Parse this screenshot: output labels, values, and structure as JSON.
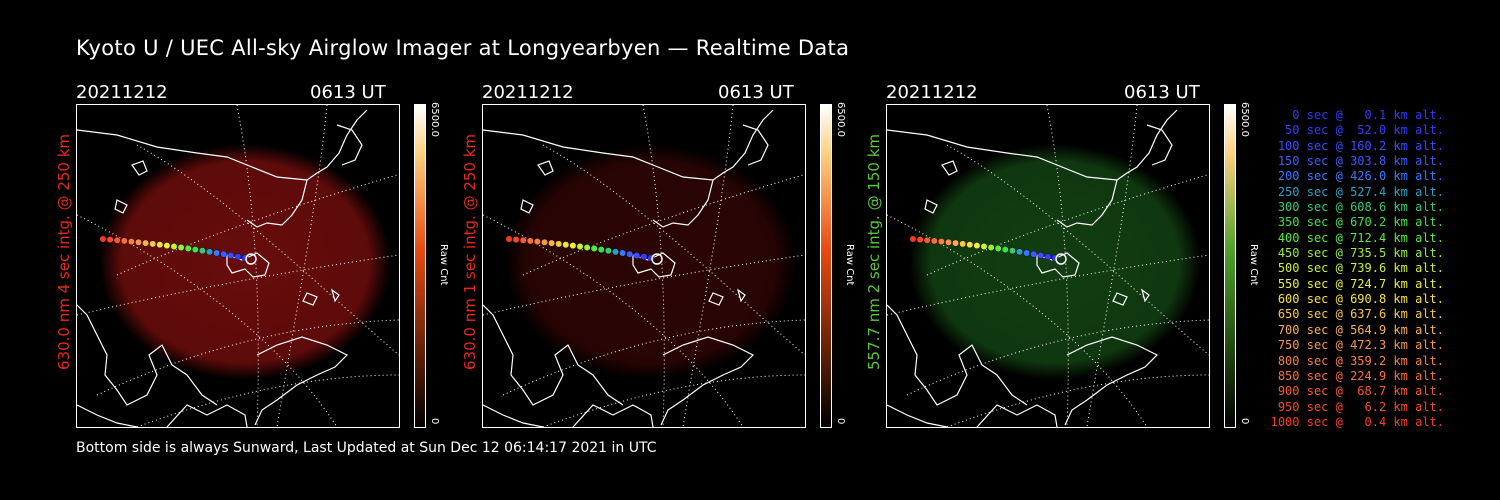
{
  "title": "Kyoto U / UEC All-sky Airglow Imager at Longyearbyen — Realtime Data",
  "footer": "Bottom side is always Sunward, Last Updated at Sun Dec 12 06:14:17 2021 in UTC",
  "panels": [
    {
      "date": "20211212",
      "time": "0613 UT",
      "side_label": "630.0 nm 4 sec intg. @ 250 km",
      "side_color": "#e8281c",
      "glow_color": "#7a0e0e",
      "glow_opacity": 0.85,
      "cb_max": "6500.0",
      "cb_min": "0",
      "cb_unit": "Raw Cnt",
      "cb_color": "#e84a10"
    },
    {
      "date": "20211212",
      "time": "0613 UT",
      "side_label": "630.0 nm 1 sec intg. @ 250 km",
      "side_color": "#e8281c",
      "glow_color": "#3a0606",
      "glow_opacity": 0.75,
      "cb_max": "6500.0",
      "cb_min": "0",
      "cb_unit": "Raw Cnt",
      "cb_color": "#e84a10"
    },
    {
      "date": "20211212",
      "time": "0613 UT",
      "side_label": "557.7 nm 2 sec intg. @ 150 km",
      "side_color": "#5ac838",
      "glow_color": "#164d16",
      "glow_opacity": 0.8,
      "cb_max": "6500.0",
      "cb_min": "0",
      "cb_unit": "Raw Cnt",
      "cb_color": "#4fa02a"
    }
  ],
  "legend": [
    {
      "text": "   0 sec @   0.1 km alt.",
      "color": "#3636ff"
    },
    {
      "text": "  50 sec @  52.0 km alt.",
      "color": "#3a3aff"
    },
    {
      "text": " 100 sec @ 160.2 km alt.",
      "color": "#3c4cff"
    },
    {
      "text": " 150 sec @ 303.8 km alt.",
      "color": "#3c5aff"
    },
    {
      "text": " 200 sec @ 426.0 km alt.",
      "color": "#3a78ff"
    },
    {
      "text": " 250 sec @ 527.4 km alt.",
      "color": "#2aa0c8"
    },
    {
      "text": " 300 sec @ 608.6 km alt.",
      "color": "#38c878"
    },
    {
      "text": " 350 sec @ 670.2 km alt.",
      "color": "#3ee04a"
    },
    {
      "text": " 400 sec @ 712.4 km alt.",
      "color": "#5ae83a"
    },
    {
      "text": " 450 sec @ 735.5 km alt.",
      "color": "#96ee3a"
    },
    {
      "text": " 500 sec @ 739.6 km alt.",
      "color": "#c8f03c"
    },
    {
      "text": " 550 sec @ 724.7 km alt.",
      "color": "#eaf03e"
    },
    {
      "text": " 600 sec @ 690.8 km alt.",
      "color": "#f6e040"
    },
    {
      "text": " 650 sec @ 637.6 km alt.",
      "color": "#f8c848"
    },
    {
      "text": " 700 sec @ 564.9 km alt.",
      "color": "#f8b050"
    },
    {
      "text": " 750 sec @ 472.3 km alt.",
      "color": "#f89848"
    },
    {
      "text": " 800 sec @ 359.2 km alt.",
      "color": "#f88040"
    },
    {
      "text": " 850 sec @ 224.9 km alt.",
      "color": "#f87038"
    },
    {
      "text": " 900 sec @  68.7 km alt.",
      "color": "#f85a30"
    },
    {
      "text": " 950 sec @   6.2 km alt.",
      "color": "#f84a28"
    },
    {
      "text": "1000 sec @   0.4 km alt.",
      "color": "#f83a20"
    }
  ]
}
